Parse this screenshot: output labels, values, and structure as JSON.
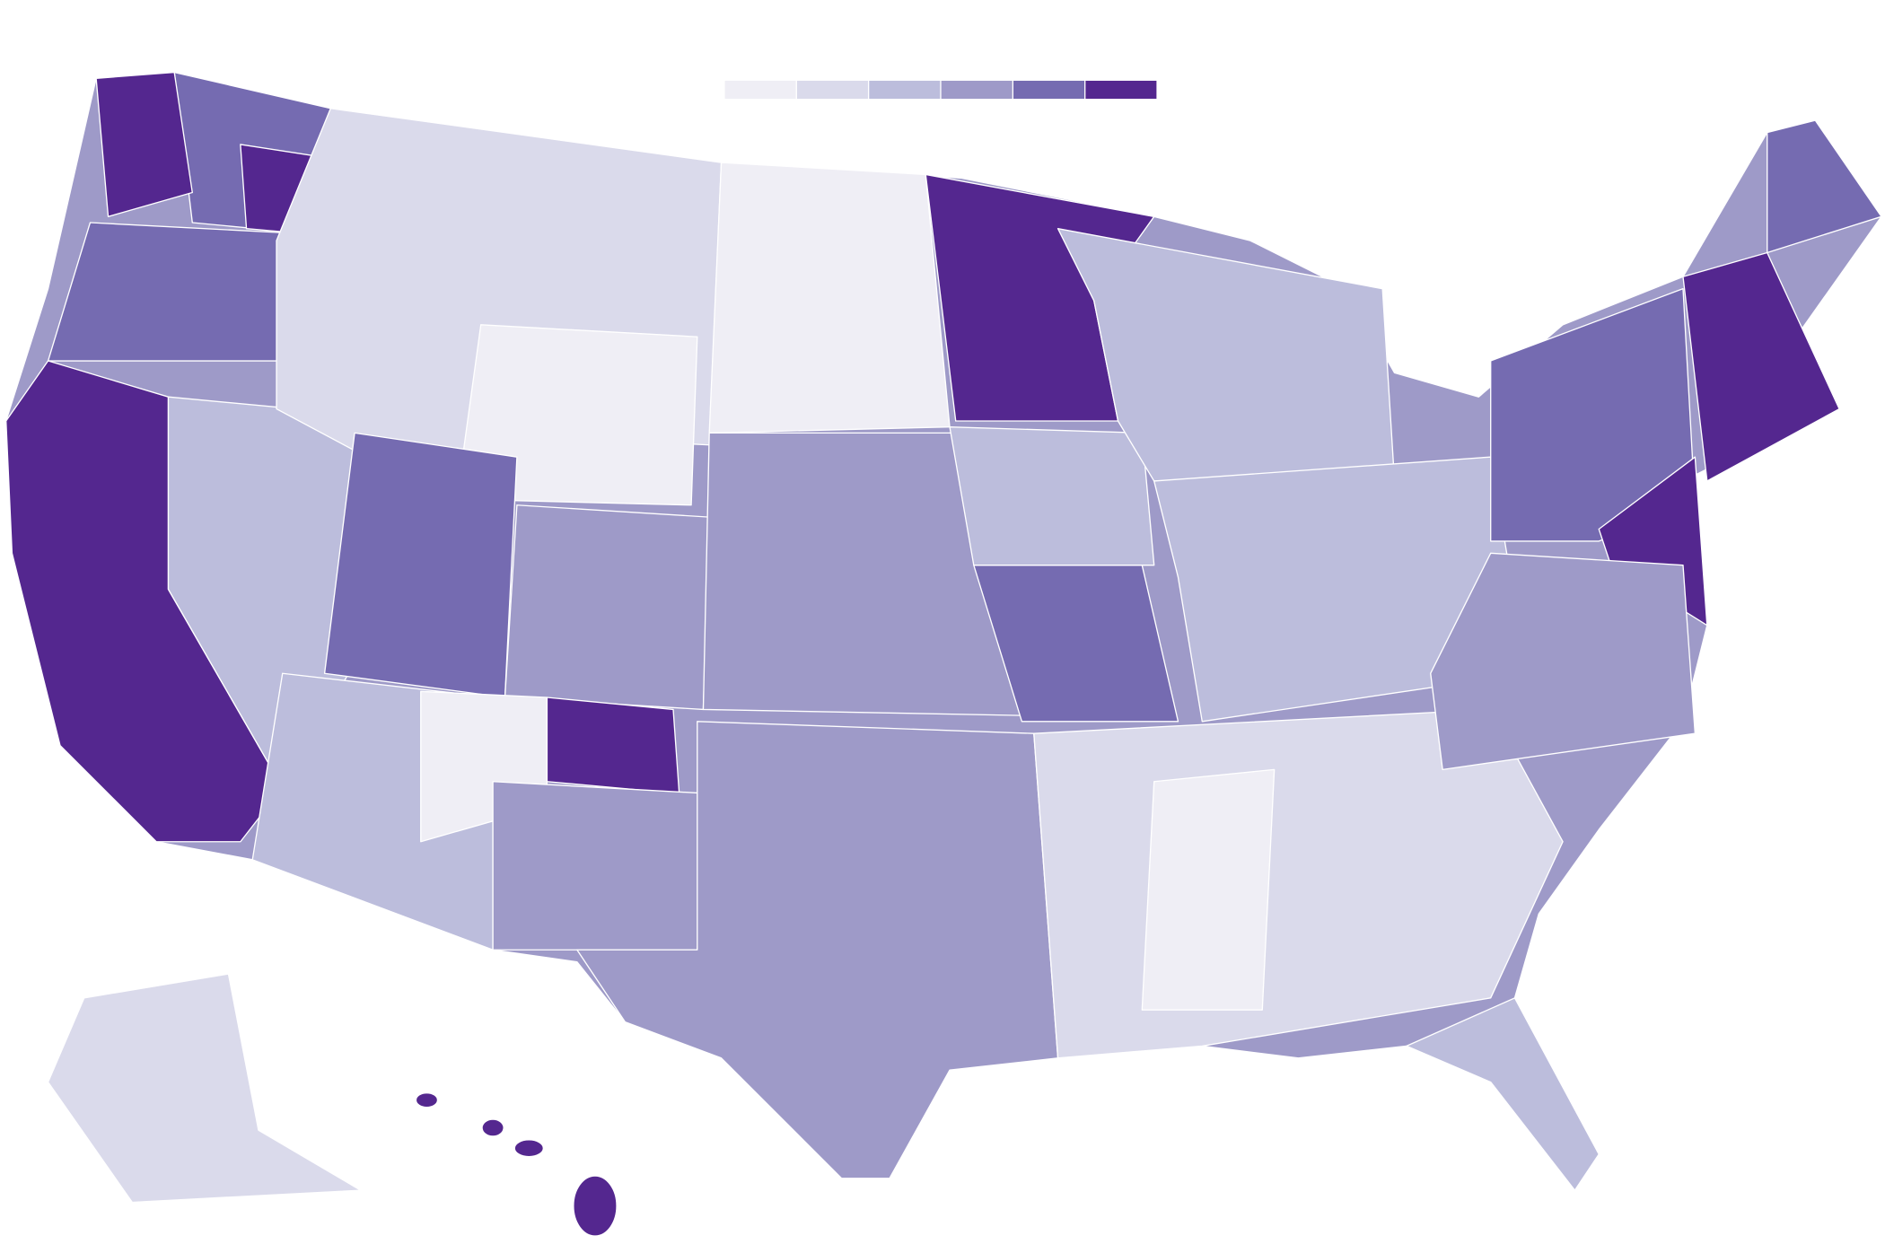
{
  "map": {
    "type": "choropleth",
    "legend": {
      "colors": [
        "#efeef5",
        "#dadaeb",
        "#bcbddc",
        "#9e9ac8",
        "#756bb1",
        "#54278f"
      ]
    },
    "region_border": "#ffffff"
  }
}
